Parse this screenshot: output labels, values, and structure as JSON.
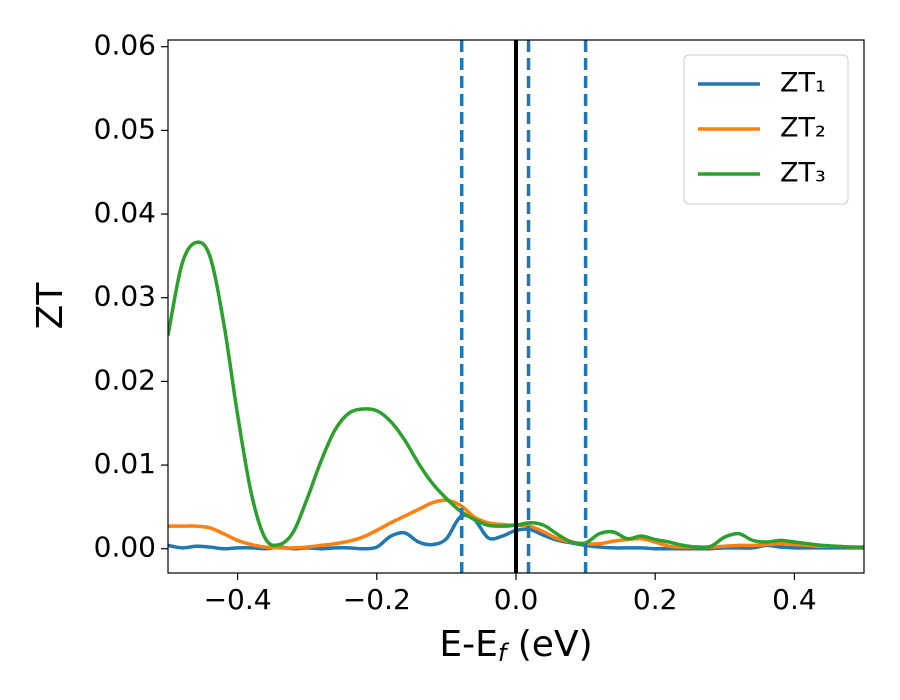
{
  "chart_data": {
    "type": "line",
    "xlabel": [
      "E-E",
      "f",
      " (eV)"
    ],
    "ylabel": "ZT",
    "xlim": [
      -0.5,
      0.5
    ],
    "ylim": [
      -0.0029,
      0.0608
    ],
    "xticks": [
      {
        "value": -0.4,
        "label": "−0.4"
      },
      {
        "value": -0.2,
        "label": "−0.2"
      },
      {
        "value": 0,
        "label": "0.0"
      },
      0.2,
      0.4
    ],
    "yticks": [
      {
        "value": 0,
        "label": "0.00"
      },
      0.01,
      0.02,
      0.03,
      0.04,
      0.05,
      0.06
    ],
    "legend": "upper right",
    "x": [
      -0.5,
      -0.48,
      -0.46,
      -0.44,
      -0.42,
      -0.4,
      -0.38,
      -0.36,
      -0.34,
      -0.32,
      -0.3,
      -0.28,
      -0.26,
      -0.24,
      -0.22,
      -0.2,
      -0.18,
      -0.16,
      -0.14,
      -0.12,
      -0.1,
      -0.08,
      -0.06,
      -0.04,
      -0.02,
      0,
      0.02,
      0.04,
      0.06,
      0.08,
      0.1,
      0.12,
      0.14,
      0.16,
      0.18,
      0.2,
      0.22,
      0.24,
      0.26,
      0.28,
      0.3,
      0.32,
      0.34,
      0.36,
      0.38,
      0.4,
      0.42,
      0.44,
      0.46,
      0.48,
      0.5
    ],
    "series": [
      {
        "name": "ZT₁",
        "color": "#1f77b4",
        "values": [
          0.0004,
          0.0001,
          0.0003,
          0.0002,
          0,
          0.0001,
          0.0001,
          0,
          0.0002,
          0,
          0.0001,
          0,
          0.0001,
          0.0001,
          0,
          0.0002,
          0.0015,
          0.0019,
          0.0008,
          0.0005,
          0.0012,
          0.0038,
          0.0035,
          0.0013,
          0.0015,
          0.0022,
          0.0023,
          0.0016,
          0.001,
          0.0007,
          0.0004,
          0.0002,
          0.0001,
          0.0001,
          0.0001,
          0,
          0,
          0,
          0,
          0,
          0.0001,
          0.0001,
          0.0001,
          0.0004,
          0.0002,
          0.0001,
          0.0001,
          0.0001,
          0.0001,
          0.0001,
          0.0001
        ]
      },
      {
        "name": "ZT₂",
        "color": "#ff7f0e",
        "values": [
          0.0027,
          0.0027,
          0.0027,
          0.0025,
          0.0018,
          0.001,
          0.0005,
          0.0002,
          0.0001,
          0.0001,
          0.0002,
          0.0004,
          0.0006,
          0.0009,
          0.0014,
          0.0022,
          0.0031,
          0.0039,
          0.0047,
          0.0055,
          0.0058,
          0.0052,
          0.0038,
          0.0031,
          0.0029,
          0.0028,
          0.0027,
          0.002,
          0.0012,
          0.0008,
          0.0006,
          0.0006,
          0.0009,
          0.0011,
          0.0012,
          0.0008,
          0.0003,
          0.0002,
          0.0002,
          0.0002,
          0.0003,
          0.0004,
          0.0004,
          0.0005,
          0.0006,
          0.0005,
          0.0004,
          0.0003,
          0.0003,
          0.0002,
          0.0002
        ]
      },
      {
        "name": "ZT₃",
        "color": "#2ca02c",
        "values": [
          0.0255,
          0.034,
          0.0366,
          0.035,
          0.027,
          0.016,
          0.0065,
          0.0012,
          0.0005,
          0.002,
          0.006,
          0.0105,
          0.0142,
          0.0162,
          0.0167,
          0.0165,
          0.0152,
          0.013,
          0.0102,
          0.0078,
          0.006,
          0.0045,
          0.0035,
          0.0028,
          0.0027,
          0.0028,
          0.0031,
          0.0028,
          0.0017,
          0.0008,
          0.0007,
          0.0018,
          0.002,
          0.0012,
          0.0015,
          0.0011,
          0.0008,
          0.0004,
          0.0002,
          0.0003,
          0.0014,
          0.0018,
          0.001,
          0.0008,
          0.001,
          0.0008,
          0.0006,
          0.0004,
          0.0003,
          0.0002,
          0.0002
        ]
      }
    ],
    "vlines": [
      {
        "x": -0.078,
        "color": "#1f77b4",
        "style": "dashed"
      },
      {
        "x": 0,
        "color": "#000000",
        "style": "solid"
      },
      {
        "x": 0.018,
        "color": "#1f77b4",
        "style": "dashed"
      },
      {
        "x": 0.1,
        "color": "#1f77b4",
        "style": "dashed"
      }
    ]
  }
}
